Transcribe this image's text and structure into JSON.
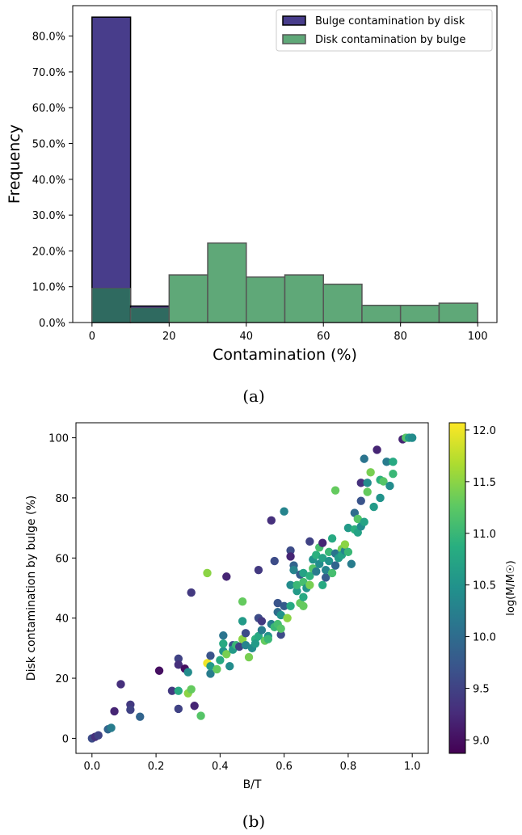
{
  "chart_data": [
    {
      "panel_label": "(a)",
      "type": "bar",
      "xlabel": "Contamination (%)",
      "ylabel": "Frequency",
      "xlim": [
        -5,
        105
      ],
      "ylim": [
        0,
        0.885
      ],
      "x_ticks": [
        0,
        20,
        40,
        60,
        80,
        100
      ],
      "y_ticks": [
        "0.0%",
        "10.0%",
        "20.0%",
        "30.0%",
        "40.0%",
        "50.0%",
        "60.0%",
        "70.0%",
        "80.0%"
      ],
      "bin_edges": [
        0,
        10,
        20,
        30,
        40,
        50,
        60,
        70,
        80,
        90,
        100
      ],
      "legend_position": "top-right",
      "series": [
        {
          "name": "Bulge contamination by disk",
          "color": "#483d8b",
          "values": [
            0.853,
            0.046,
            0.0,
            0.0,
            0.0,
            0.0,
            0.0,
            0.0,
            0.0,
            0.0
          ]
        },
        {
          "name": "Disk contamination by bulge",
          "color": "#5fa878",
          "values": [
            0.095,
            0.04,
            0.133,
            0.222,
            0.127,
            0.133,
            0.107,
            0.048,
            0.048,
            0.054
          ]
        }
      ],
      "overlap_color": "#2f6a60"
    },
    {
      "panel_label": "(b)",
      "type": "scatter",
      "xlabel": "B/T",
      "ylabel": "Disk contamination by bulge (%)",
      "xlim": [
        -0.05,
        1.05
      ],
      "ylim": [
        -5,
        105
      ],
      "x_ticks": [
        "0.0",
        "0.2",
        "0.4",
        "0.6",
        "0.8",
        "1.0"
      ],
      "y_ticks": [
        "0",
        "20",
        "40",
        "60",
        "80",
        "100"
      ],
      "colorbar": {
        "label": "log(M/M☉)",
        "range": [
          8.87,
          12.07
        ],
        "ticks": [
          "9.0",
          "9.5",
          "10.0",
          "10.5",
          "11.0",
          "11.5",
          "12.0"
        ],
        "colormap": "viridis"
      },
      "points": [
        [
          0.0,
          0.0,
          9.6
        ],
        [
          0.01,
          0.5,
          9.3
        ],
        [
          0.02,
          1.0,
          9.5
        ],
        [
          0.05,
          3.0,
          9.9
        ],
        [
          0.06,
          3.5,
          10.2
        ],
        [
          0.07,
          9.0,
          9.2
        ],
        [
          0.09,
          18.0,
          9.3
        ],
        [
          0.12,
          11.2,
          9.4
        ],
        [
          0.12,
          9.5,
          9.5
        ],
        [
          0.15,
          7.2,
          9.9
        ],
        [
          0.21,
          22.5,
          9.0
        ],
        [
          0.25,
          15.8,
          9.4
        ],
        [
          0.27,
          26.5,
          9.5
        ],
        [
          0.27,
          24.5,
          9.3
        ],
        [
          0.27,
          9.8,
          9.5
        ],
        [
          0.27,
          15.8,
          10.8
        ],
        [
          0.29,
          23.2,
          9.0
        ],
        [
          0.3,
          22.0,
          10.4
        ],
        [
          0.3,
          15.0,
          11.5
        ],
        [
          0.31,
          16.3,
          11.3
        ],
        [
          0.31,
          48.5,
          9.4
        ],
        [
          0.32,
          10.8,
          9.2
        ],
        [
          0.34,
          7.5,
          11.2
        ],
        [
          0.36,
          55.0,
          11.5
        ],
        [
          0.36,
          25.0,
          12.0
        ],
        [
          0.37,
          27.5,
          9.7
        ],
        [
          0.37,
          21.5,
          10.2
        ],
        [
          0.37,
          24.0,
          10.6
        ],
        [
          0.39,
          23.0,
          11.3
        ],
        [
          0.4,
          26.0,
          10.8
        ],
        [
          0.41,
          34.2,
          10.1
        ],
        [
          0.41,
          29.0,
          10.5
        ],
        [
          0.41,
          31.5,
          10.8
        ],
        [
          0.42,
          53.8,
          9.2
        ],
        [
          0.42,
          28.0,
          11.4
        ],
        [
          0.43,
          24.0,
          10.4
        ],
        [
          0.44,
          31.0,
          9.7
        ],
        [
          0.44,
          29.5,
          10.6
        ],
        [
          0.45,
          31.0,
          11.0
        ],
        [
          0.46,
          30.5,
          9.5
        ],
        [
          0.47,
          45.5,
          11.3
        ],
        [
          0.47,
          39.0,
          10.6
        ],
        [
          0.47,
          33.0,
          11.5
        ],
        [
          0.48,
          35.0,
          9.6
        ],
        [
          0.48,
          31.0,
          10.3
        ],
        [
          0.49,
          27.0,
          11.4
        ],
        [
          0.5,
          30.0,
          10.4
        ],
        [
          0.51,
          33.0,
          10.9
        ],
        [
          0.51,
          31.5,
          10.6
        ],
        [
          0.52,
          56.0,
          9.4
        ],
        [
          0.52,
          40.0,
          9.6
        ],
        [
          0.52,
          34.0,
          10.8
        ],
        [
          0.53,
          39.0,
          9.4
        ],
        [
          0.53,
          36.0,
          10.2
        ],
        [
          0.54,
          32.5,
          11.3
        ],
        [
          0.55,
          34.0,
          10.5
        ],
        [
          0.55,
          33.0,
          11.0
        ],
        [
          0.56,
          72.5,
          9.3
        ],
        [
          0.56,
          38.0,
          10.2
        ],
        [
          0.57,
          37.0,
          11.0
        ],
        [
          0.57,
          59.0,
          9.6
        ],
        [
          0.58,
          45.0,
          9.7
        ],
        [
          0.58,
          42.0,
          10.0
        ],
        [
          0.58,
          38.0,
          11.1
        ],
        [
          0.59,
          34.5,
          9.6
        ],
        [
          0.59,
          41.0,
          10.5
        ],
        [
          0.59,
          36.5,
          11.2
        ],
        [
          0.6,
          75.5,
          10.3
        ],
        [
          0.6,
          44.0,
          9.8
        ],
        [
          0.61,
          40.0,
          11.5
        ],
        [
          0.62,
          62.5,
          9.6
        ],
        [
          0.62,
          60.5,
          9.2
        ],
        [
          0.62,
          51.0,
          10.4
        ],
        [
          0.62,
          44.0,
          10.8
        ],
        [
          0.63,
          57.5,
          9.9
        ],
        [
          0.63,
          56.0,
          10.3
        ],
        [
          0.64,
          49.0,
          10.6
        ],
        [
          0.64,
          51.0,
          11.0
        ],
        [
          0.65,
          54.5,
          9.8
        ],
        [
          0.65,
          45.0,
          11.3
        ],
        [
          0.66,
          55.0,
          10.7
        ],
        [
          0.66,
          52.0,
          11.1
        ],
        [
          0.66,
          47.0,
          10.8
        ],
        [
          0.66,
          44.0,
          11.3
        ],
        [
          0.67,
          50.0,
          10.5
        ],
        [
          0.68,
          65.5,
          9.5
        ],
        [
          0.68,
          54.0,
          10.9
        ],
        [
          0.68,
          51.0,
          11.4
        ],
        [
          0.69,
          59.5,
          10.5
        ],
        [
          0.69,
          56.5,
          11.2
        ],
        [
          0.7,
          55.5,
          10.2
        ],
        [
          0.7,
          61.0,
          10.9
        ],
        [
          0.71,
          58.0,
          10.4
        ],
        [
          0.71,
          63.5,
          11.1
        ],
        [
          0.72,
          65.0,
          9.2
        ],
        [
          0.72,
          51.0,
          10.8
        ],
        [
          0.72,
          60.0,
          10.7
        ],
        [
          0.73,
          53.5,
          9.8
        ],
        [
          0.73,
          56.0,
          10.3
        ],
        [
          0.74,
          59.0,
          10.5
        ],
        [
          0.74,
          62.0,
          11.0
        ],
        [
          0.75,
          66.5,
          10.8
        ],
        [
          0.75,
          55.0,
          11.1
        ],
        [
          0.76,
          82.5,
          11.3
        ],
        [
          0.76,
          61.5,
          10.1
        ],
        [
          0.76,
          57.5,
          9.9
        ],
        [
          0.77,
          60.0,
          10.6
        ],
        [
          0.78,
          63.0,
          11.4
        ],
        [
          0.78,
          61.0,
          10.7
        ],
        [
          0.79,
          62.5,
          10.3
        ],
        [
          0.79,
          64.5,
          11.5
        ],
        [
          0.8,
          70.0,
          10.6
        ],
        [
          0.8,
          62.0,
          11.0
        ],
        [
          0.81,
          58.0,
          10.2
        ],
        [
          0.82,
          69.5,
          10.9
        ],
        [
          0.82,
          75.0,
          10.0
        ],
        [
          0.83,
          68.5,
          10.7
        ],
        [
          0.83,
          73.0,
          11.2
        ],
        [
          0.84,
          85.0,
          9.3
        ],
        [
          0.84,
          79.0,
          9.7
        ],
        [
          0.84,
          70.5,
          10.4
        ],
        [
          0.85,
          93.0,
          10.1
        ],
        [
          0.85,
          72.0,
          10.7
        ],
        [
          0.86,
          85.0,
          10.4
        ],
        [
          0.86,
          82.0,
          11.3
        ],
        [
          0.87,
          88.5,
          11.4
        ],
        [
          0.88,
          77.0,
          10.6
        ],
        [
          0.89,
          96.0,
          9.2
        ],
        [
          0.9,
          80.0,
          10.5
        ],
        [
          0.9,
          86.0,
          10.9
        ],
        [
          0.91,
          85.5,
          11.2
        ],
        [
          0.92,
          92.0,
          10.2
        ],
        [
          0.93,
          84.0,
          10.4
        ],
        [
          0.94,
          88.0,
          11.0
        ],
        [
          0.94,
          92.0,
          10.8
        ],
        [
          0.97,
          99.5,
          9.2
        ],
        [
          0.98,
          100.0,
          11.2
        ],
        [
          0.99,
          100.0,
          10.6
        ],
        [
          1.0,
          100.0,
          10.4
        ]
      ]
    }
  ]
}
